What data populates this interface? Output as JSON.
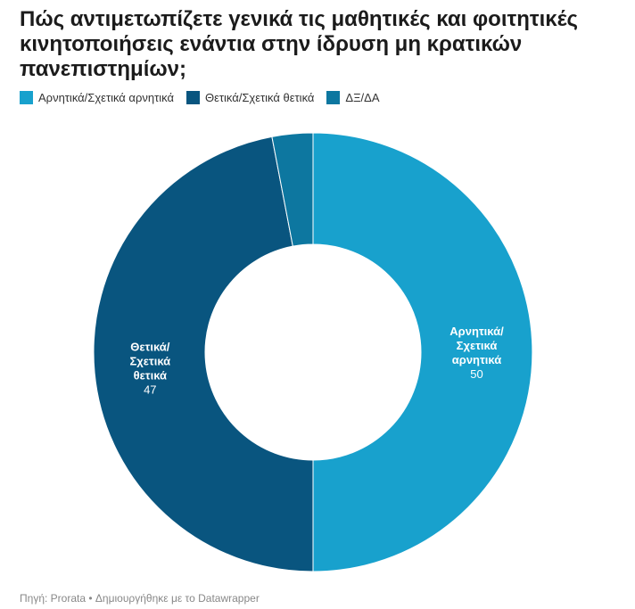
{
  "title": "Πώς αντιμετωπίζετε γενικά τις μαθητικές και φοιτητικές κινητοποιήσεις ενάντια στην ίδρυση μη κρατικών πανεπιστημίων;",
  "source": "Πηγή: Prorata • Δημιουργήθηκε με το Datawrapper",
  "chart_data": {
    "type": "pie",
    "variant": "donut",
    "legend_position": "top-left",
    "slices": [
      {
        "name": "Αρνητικά/Σχετικά αρνητικά",
        "value": 50,
        "color": "#18a1cd",
        "label_lines": [
          "Αρνητικά/",
          "Σχετικά",
          "αρνητικά"
        ],
        "value_label": "50"
      },
      {
        "name": "Θετικά/Σχετικά θετικά",
        "value": 47,
        "color": "#09557f",
        "label_lines": [
          "Θετικά/",
          "Σχετικά",
          "θετικά"
        ],
        "value_label": "47"
      },
      {
        "name": "ΔΞ/ΔΑ",
        "value": 3,
        "color": "#0d77a0",
        "label_lines": [],
        "value_label": ""
      }
    ]
  }
}
